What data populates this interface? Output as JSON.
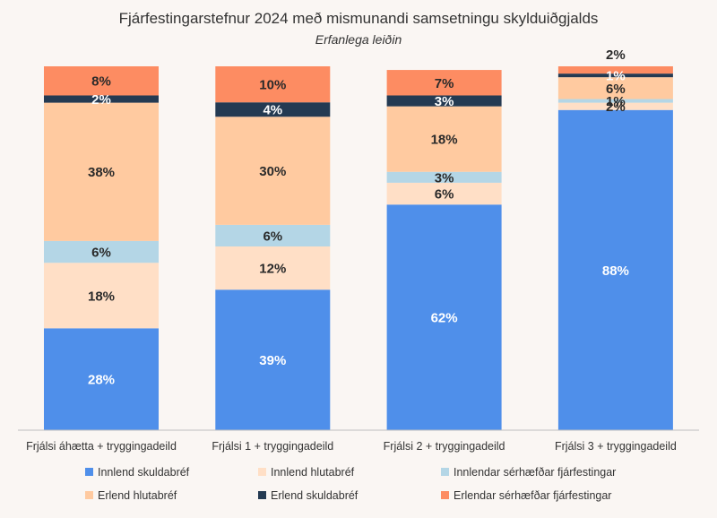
{
  "chart_data": {
    "type": "bar",
    "stacked": true,
    "title": "Fjárfestingarstefnur 2024 með mismunandi samsetningu skylduiðgjalds",
    "subtitle": "Erfanlega leiðin",
    "categories": [
      "Frjálsi áhætta + tryggingadeild",
      "Frjálsi 1 + tryggingadeild",
      "Frjálsi 2 + tryggingadeild",
      "Frjálsi 3 + tryggingadeild"
    ],
    "ylim": [
      0,
      100
    ],
    "grid": false,
    "legend_position": "bottom",
    "series": [
      {
        "name": "Innlend skuldabréf",
        "color": "#4f8fea",
        "label_color": "#ffffff",
        "values": [
          28,
          39,
          62,
          88
        ],
        "labels": [
          "28%",
          "39%",
          "62%",
          "88%"
        ]
      },
      {
        "name": "Innlend hlutabréf",
        "color": "#ffdfc6",
        "label_color": "#2a2a2a",
        "values": [
          18,
          12,
          6,
          2
        ],
        "labels": [
          "18%",
          "12%",
          "6%",
          "2%"
        ]
      },
      {
        "name": "Innlendar sérhæfðar fjárfestingar",
        "color": "#b4d6e6",
        "label_color": "#2a2a2a",
        "values": [
          6,
          6,
          3,
          1
        ],
        "labels": [
          "6%",
          "6%",
          "3%",
          "1%"
        ]
      },
      {
        "name": "Erlend hlutabréf",
        "color": "#ffcaa0",
        "label_color": "#2a2a2a",
        "values": [
          38,
          30,
          18,
          6
        ],
        "labels": [
          "38%",
          "30%",
          "18%",
          "6%"
        ]
      },
      {
        "name": "Erlend skuldabréf",
        "color": "#243a52",
        "label_color": "#ffffff",
        "values": [
          2,
          4,
          3,
          1
        ],
        "labels": [
          "2%",
          "4%",
          "3%",
          "1%"
        ]
      },
      {
        "name": "Erlendar sérhæfðar fjárfestingar",
        "color": "#fd8c62",
        "label_color": "#2a2a2a",
        "values": [
          8,
          10,
          7,
          2
        ],
        "labels": [
          "8%",
          "10%",
          "7%",
          "2%"
        ]
      }
    ]
  }
}
